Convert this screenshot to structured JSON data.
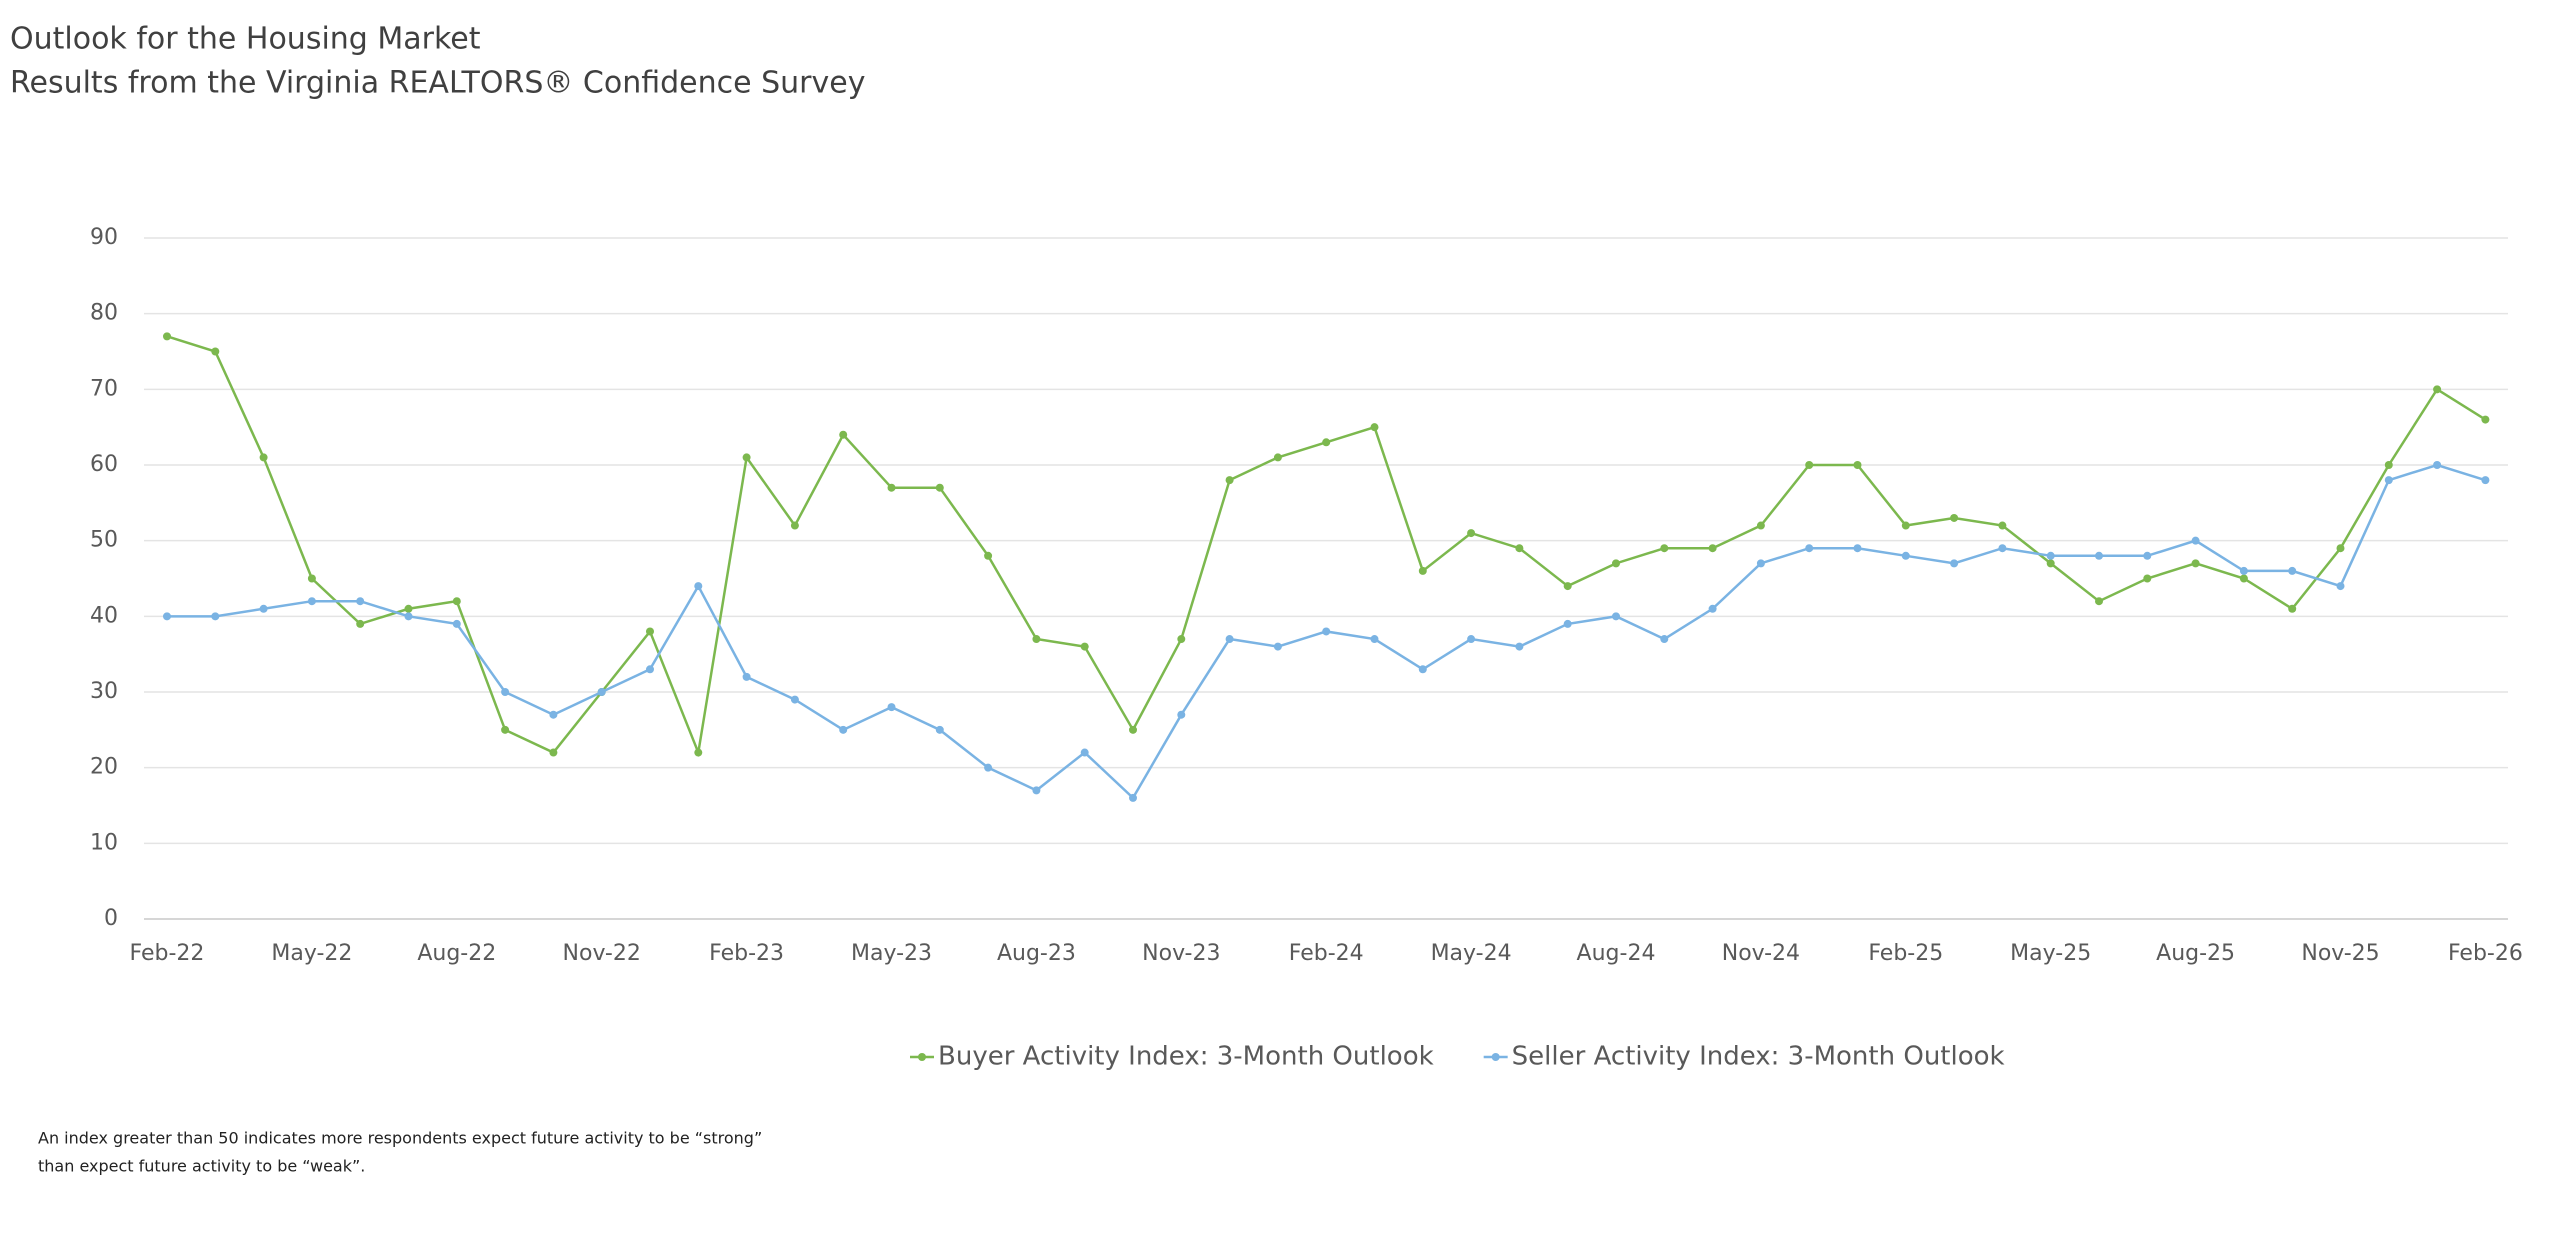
{
  "chart_data": {
    "type": "line",
    "title": "Outlook for the Housing Market",
    "subtitle": "Results from the Virginia REALTORS® Confidence Survey",
    "footnote": [
      "An index greater than 50 indicates more respondents expect future activity to be “strong”",
      "than expect future activity to be “weak”."
    ],
    "categories": [
      "Feb-22",
      null,
      null,
      "May-22",
      null,
      null,
      "Aug-22",
      null,
      null,
      "Nov-22",
      null,
      null,
      "Feb-23",
      null,
      null,
      "May-23",
      null,
      null,
      "Aug-23",
      null,
      null,
      "Nov-23",
      null,
      null,
      "Feb-24",
      null,
      null,
      "May-24",
      null,
      null,
      "Aug-24",
      null,
      null,
      "Nov-24",
      null,
      null,
      "Feb-25",
      null,
      null,
      "May-25",
      null,
      null,
      "Aug-25",
      null,
      null,
      "Nov-25",
      null,
      null,
      "Feb-26"
    ],
    "series": [
      {
        "name": "Buyer Activity Index: 3-Month Outlook",
        "color": "#7cb84e",
        "values": [
          77,
          75,
          61,
          45,
          39,
          41,
          42,
          25,
          22,
          30,
          38,
          22,
          61,
          52,
          64,
          57,
          57,
          48,
          37,
          36,
          25,
          37,
          58,
          61,
          63,
          65,
          46,
          51,
          49,
          44,
          47,
          49,
          49,
          52,
          60,
          60,
          52,
          53,
          52,
          47,
          42,
          45,
          47,
          45,
          41,
          49,
          60,
          70,
          66
        ]
      },
      {
        "name": "Seller Activity Index: 3-Month Outlook",
        "color": "#7ab3e3",
        "values": [
          40,
          40,
          41,
          42,
          42,
          40,
          39,
          30,
          27,
          30,
          33,
          44,
          32,
          29,
          25,
          28,
          25,
          20,
          17,
          22,
          16,
          27,
          37,
          36,
          38,
          37,
          33,
          37,
          36,
          39,
          40,
          37,
          41,
          47,
          49,
          49,
          48,
          47,
          49,
          48,
          48,
          48,
          50,
          46,
          46,
          44,
          58,
          60,
          58
        ]
      }
    ],
    "ylim": [
      0,
      90
    ],
    "yticks": [
      0,
      10,
      20,
      30,
      40,
      50,
      60,
      70,
      80,
      90
    ],
    "grid": true
  }
}
